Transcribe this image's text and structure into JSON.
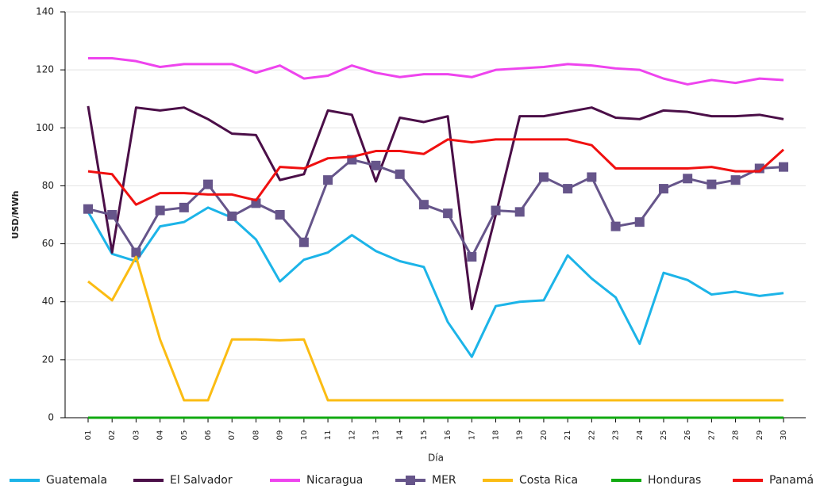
{
  "chart_data": {
    "type": "line",
    "x_label": "Día",
    "y_label": "USD/MWh",
    "categories": [
      "01",
      "02",
      "03",
      "04",
      "05",
      "06",
      "07",
      "08",
      "09",
      "10",
      "11",
      "12",
      "13",
      "14",
      "15",
      "16",
      "17",
      "18",
      "19",
      "20",
      "21",
      "22",
      "23",
      "24",
      "25",
      "26",
      "27",
      "28",
      "29",
      "30"
    ],
    "ylim": [
      0,
      140
    ],
    "yticks": [
      0,
      20,
      40,
      60,
      80,
      100,
      120,
      140
    ],
    "grid": true,
    "legend": "bottom",
    "series": [
      {
        "name": "Guatemala",
        "color": "#1cb4e8",
        "values": [
          71,
          56.5,
          54,
          66,
          67.5,
          72.5,
          69,
          61.5,
          47,
          54.5,
          57,
          63,
          57.5,
          54,
          52,
          33,
          21,
          38.5,
          40,
          40.5,
          56,
          48,
          41.5,
          25.5,
          50,
          47.5,
          42.5,
          43.5,
          42,
          43
        ]
      },
      {
        "name": "El Salvador",
        "color": "#4b0f48",
        "values": [
          107.5,
          57,
          107,
          106,
          107,
          103,
          98,
          97.5,
          82,
          84,
          106,
          104.5,
          81.5,
          103.5,
          102,
          104,
          37.5,
          70,
          104,
          104,
          105.5,
          107,
          103.5,
          103,
          106,
          105.5,
          104,
          104,
          104.5,
          103
        ]
      },
      {
        "name": "Nicaragua",
        "color": "#ee44ee",
        "values": [
          124,
          124,
          123,
          121,
          122,
          122,
          122,
          119,
          121.5,
          117,
          118,
          121.5,
          119,
          117.5,
          118.5,
          118.5,
          117.5,
          120,
          120.5,
          121,
          122,
          121.5,
          120.5,
          120,
          117,
          115,
          116.5,
          115.5,
          117,
          116.5
        ]
      },
      {
        "name": "MER",
        "color": "#66558a",
        "marker": "square",
        "values": [
          72,
          70,
          57,
          71.5,
          72.5,
          80.5,
          69.5,
          74,
          70,
          60.5,
          82,
          89,
          87,
          84,
          73.5,
          70.5,
          55.5,
          71.5,
          71,
          83,
          79,
          83,
          66,
          67.5,
          79,
          82.5,
          80.5,
          82,
          86,
          86.5
        ]
      },
      {
        "name": "Costa Rica",
        "color": "#fbbc13",
        "values": [
          47,
          40.5,
          55.5,
          27,
          6,
          6,
          27,
          27,
          26.7,
          27,
          6,
          6,
          6,
          6,
          6,
          6,
          6,
          6,
          6,
          6,
          6,
          6,
          6,
          6,
          6,
          6,
          6,
          6,
          6,
          6
        ]
      },
      {
        "name": "Honduras",
        "color": "#11aa11",
        "values": [
          0,
          0,
          0,
          0,
          0,
          0,
          0,
          0,
          0,
          0,
          0,
          0,
          0,
          0,
          0,
          0,
          0,
          0,
          0,
          0,
          0,
          0,
          0,
          0,
          0,
          0,
          0,
          0,
          0,
          0
        ]
      },
      {
        "name": "Panamá",
        "color": "#f01010",
        "values": [
          85,
          84,
          73.5,
          77.5,
          77.5,
          77,
          77,
          75,
          86.5,
          86,
          89.5,
          90,
          92,
          92,
          91,
          96,
          95,
          96,
          96,
          96,
          96,
          94,
          86,
          86,
          86,
          86,
          86.5,
          85,
          85,
          92.5
        ]
      }
    ]
  }
}
